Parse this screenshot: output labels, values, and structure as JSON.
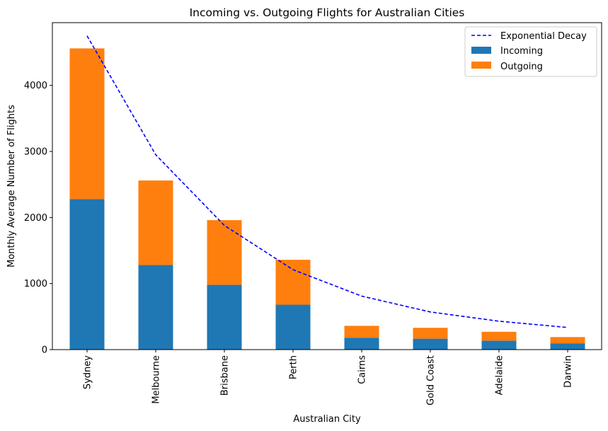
{
  "chart_data": {
    "type": "bar",
    "stacked": true,
    "title": "Incoming vs. Outgoing Flights for Australian Cities",
    "xlabel": "Australian City",
    "ylabel": "Monthly Average Number of Flights",
    "categories": [
      "Sydney",
      "Melbourne",
      "Brisbane",
      "Perth",
      "Cairns",
      "Gold Coast",
      "Adelaide",
      "Darwin"
    ],
    "series": [
      {
        "name": "Incoming",
        "type": "bar",
        "color": "#1f77b4",
        "values": [
          2280,
          1280,
          980,
          680,
          180,
          165,
          135,
          95
        ]
      },
      {
        "name": "Outgoing",
        "type": "bar",
        "color": "#ff7f0e",
        "values": [
          2280,
          1280,
          980,
          680,
          180,
          165,
          135,
          95
        ]
      },
      {
        "name": "Exponential Decay",
        "type": "line",
        "style": "dashed",
        "color": "#0000ff",
        "values": [
          4750,
          2950,
          1880,
          1210,
          810,
          570,
          430,
          335
        ]
      }
    ],
    "yticks": [
      0,
      1000,
      2000,
      3000,
      4000
    ],
    "ylim": [
      0,
      4950
    ],
    "legend": {
      "placement": "top-right",
      "entries": [
        "Exponential Decay",
        "Incoming",
        "Outgoing"
      ]
    },
    "grid": false
  }
}
